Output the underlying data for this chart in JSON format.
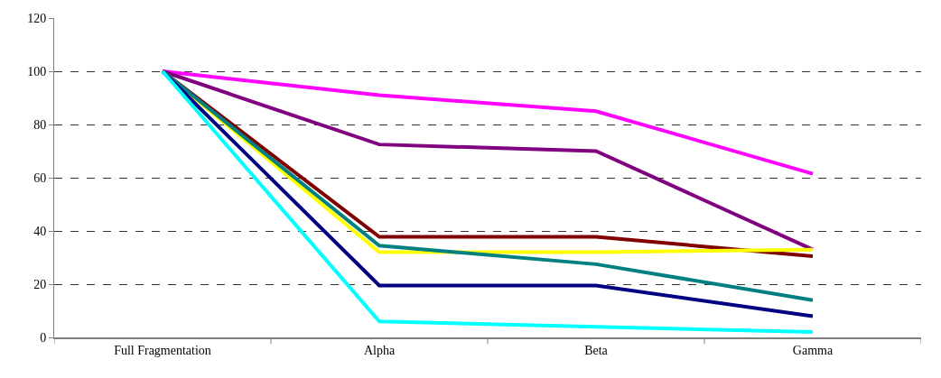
{
  "chart_data": {
    "type": "line",
    "categories": [
      "Full Fragmentation",
      "Alpha",
      "Beta",
      "Gamma"
    ],
    "series": [
      {
        "color": "#ff00ff",
        "values": [
          100,
          91,
          85,
          61.5
        ]
      },
      {
        "color": "#800080",
        "values": [
          100,
          72.5,
          70,
          33
        ]
      },
      {
        "color": "#800000",
        "values": [
          100,
          37.8,
          37.8,
          30.5
        ]
      },
      {
        "color": "#ffff00",
        "values": [
          100,
          32,
          32,
          33
        ]
      },
      {
        "color": "#008080",
        "values": [
          100,
          34.5,
          27.5,
          14
        ]
      },
      {
        "color": "#000080",
        "values": [
          100,
          19.5,
          19.5,
          8
        ]
      },
      {
        "color": "#00ffff",
        "values": [
          100,
          6,
          4,
          2
        ]
      }
    ],
    "ylim": [
      0,
      120
    ],
    "yticks": [
      0,
      20,
      40,
      60,
      80,
      100,
      120
    ],
    "grid": "y",
    "marker": "none",
    "line_style": "solid"
  }
}
